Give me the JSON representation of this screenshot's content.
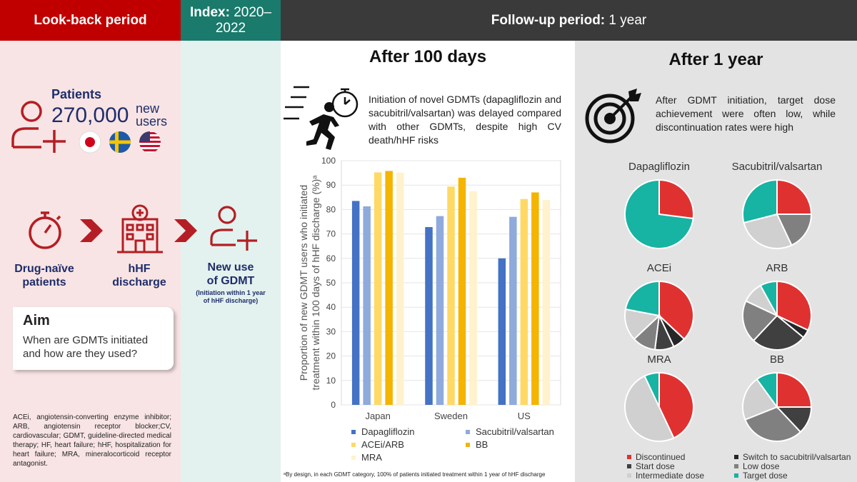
{
  "colors": {
    "lookback_red": "#c00000",
    "index_teal": "#1a7a6c",
    "followup_dark": "#3a3a3a",
    "lookback_bg": "#f8e4e4",
    "index_bg": "#e3f2ee",
    "right_bg": "#e3e3e3",
    "navy": "#1f2d6b",
    "icon_red": "#b41e24"
  },
  "header": {
    "lookback": "Look-back period",
    "index_label": "Index:",
    "index_value_1": "2020–",
    "index_value_2": "2022",
    "followup_label": "Follow-up period:",
    "followup_value": "1 year"
  },
  "left": {
    "patients_label": "Patients",
    "patients_count": "270,000",
    "new_users_1": "new",
    "new_users_2": "users",
    "flags": [
      "japan-flag",
      "sweden-flag",
      "us-flag"
    ],
    "flow": {
      "step1_1": "Drug-naïve",
      "step1_2": "patients",
      "step2_1": "hHF",
      "step2_2": "discharge",
      "step3_1": "New use",
      "step3_2": "of GDMT",
      "step3_note_1": "(Initiation within 1 year",
      "step3_note_2": "of hHF discharge)"
    },
    "aim_title": "Aim",
    "aim_text_1": "When are GDMTs initiated",
    "aim_text_2": "and how are they used?",
    "footnote": "ACEi, angiotensin-converting enzyme inhibitor; ARB, angiotensin receptor blocker;CV, cardiovascular; GDMT, guideline-directed medical therapy; HF, heart failure; hHF, hospitalization for heart failure; MRA, mineralocorticoid receptor antagonist."
  },
  "middle": {
    "title": "After 100 days",
    "description": "Initiation of novel GDMTs (dapagliflozin and sacubitril/valsartan) was delayed compared with other GDMTs, despite high CV death/hHF risks",
    "footnote": "ᵃBy design, in each GDMT category, 100% of patients initiated treatment within 1 year of hHF discharge"
  },
  "chart_data": {
    "type": "bar",
    "title": "",
    "ylabel": "Proportion of new GDMT users who initiated treatment within 100 days of hHF discharge (%)ᵃ",
    "ylabel_line1": "Proportion of new GDMT users who initiated",
    "ylabel_line2": "treatment within 100 days of hHF discharge (%)ᵃ",
    "xlabel": "",
    "ylim": [
      0,
      100
    ],
    "yticks": [
      0,
      10,
      20,
      30,
      40,
      50,
      60,
      70,
      80,
      90,
      100
    ],
    "grid": true,
    "categories": [
      "Japan",
      "Sweden",
      "US"
    ],
    "series": [
      {
        "name": "Dapagliflozin",
        "color": "#4472c4",
        "values": [
          83.5,
          72.8,
          60.0
        ]
      },
      {
        "name": "Sacubitril/valsartan",
        "color": "#8faadc",
        "values": [
          81.3,
          77.3,
          77.0
        ]
      },
      {
        "name": "ACEi/ARB",
        "color": "#ffd966",
        "values": [
          95.2,
          89.4,
          84.3
        ]
      },
      {
        "name": "BB",
        "color": "#f4b400",
        "values": [
          95.8,
          93.0,
          87.0
        ]
      },
      {
        "name": "MRA",
        "color": "#fff2cc",
        "values": [
          95.1,
          87.5,
          83.9
        ]
      }
    ],
    "legend_position": "bottom"
  },
  "right": {
    "title": "After 1 year",
    "description": "After GDMT initiation, target dose achievement were often low, while discontinuation rates were high",
    "pie_legend": [
      {
        "label": "Discontinued",
        "color": "#e03131"
      },
      {
        "label": "Switch to sacubitril/valsartan",
        "color": "#262626"
      },
      {
        "label": "Start dose",
        "color": "#404040"
      },
      {
        "label": "Low dose",
        "color": "#808080"
      },
      {
        "label": "Intermediate dose",
        "color": "#d0d0d0"
      },
      {
        "label": "Target dose",
        "color": "#17b3a3"
      }
    ],
    "pies": [
      {
        "name": "Dapagliflozin",
        "slices": [
          {
            "category": "Discontinued",
            "value": 27,
            "color": "#e03131"
          },
          {
            "category": "Target dose",
            "value": 73,
            "color": "#17b3a3"
          }
        ]
      },
      {
        "name": "Sacubitril/valsartan",
        "slices": [
          {
            "category": "Discontinued",
            "value": 25,
            "color": "#e03131"
          },
          {
            "category": "Low dose",
            "value": 18,
            "color": "#808080"
          },
          {
            "category": "Intermediate dose",
            "value": 28,
            "color": "#d0d0d0"
          },
          {
            "category": "Target dose",
            "value": 29,
            "color": "#17b3a3"
          }
        ]
      },
      {
        "name": "ACEi",
        "slices": [
          {
            "category": "Discontinued",
            "value": 37,
            "color": "#e03131"
          },
          {
            "category": "Switch to sacubitril/valsartan",
            "value": 6,
            "color": "#262626"
          },
          {
            "category": "Start dose",
            "value": 9,
            "color": "#404040"
          },
          {
            "category": "Low dose",
            "value": 11,
            "color": "#808080"
          },
          {
            "category": "Intermediate dose",
            "value": 15,
            "color": "#d0d0d0"
          },
          {
            "category": "Target dose",
            "value": 22,
            "color": "#17b3a3"
          }
        ]
      },
      {
        "name": "ARB",
        "slices": [
          {
            "category": "Discontinued",
            "value": 32,
            "color": "#e03131"
          },
          {
            "category": "Switch to sacubitril/valsartan",
            "value": 4,
            "color": "#262626"
          },
          {
            "category": "Start dose",
            "value": 26,
            "color": "#404040"
          },
          {
            "category": "Low dose",
            "value": 20,
            "color": "#808080"
          },
          {
            "category": "Intermediate dose",
            "value": 10,
            "color": "#d0d0d0"
          },
          {
            "category": "Target dose",
            "value": 8,
            "color": "#17b3a3"
          }
        ]
      },
      {
        "name": "MRA",
        "slices": [
          {
            "category": "Discontinued",
            "value": 43,
            "color": "#e03131"
          },
          {
            "category": "Intermediate dose",
            "value": 50,
            "color": "#d0d0d0"
          },
          {
            "category": "Target dose",
            "value": 7,
            "color": "#17b3a3"
          }
        ]
      },
      {
        "name": "BB",
        "slices": [
          {
            "category": "Discontinued",
            "value": 25,
            "color": "#e03131"
          },
          {
            "category": "Start dose",
            "value": 13,
            "color": "#404040"
          },
          {
            "category": "Low dose",
            "value": 31,
            "color": "#808080"
          },
          {
            "category": "Intermediate dose",
            "value": 21,
            "color": "#d0d0d0"
          },
          {
            "category": "Target dose",
            "value": 10,
            "color": "#17b3a3"
          }
        ]
      }
    ]
  }
}
